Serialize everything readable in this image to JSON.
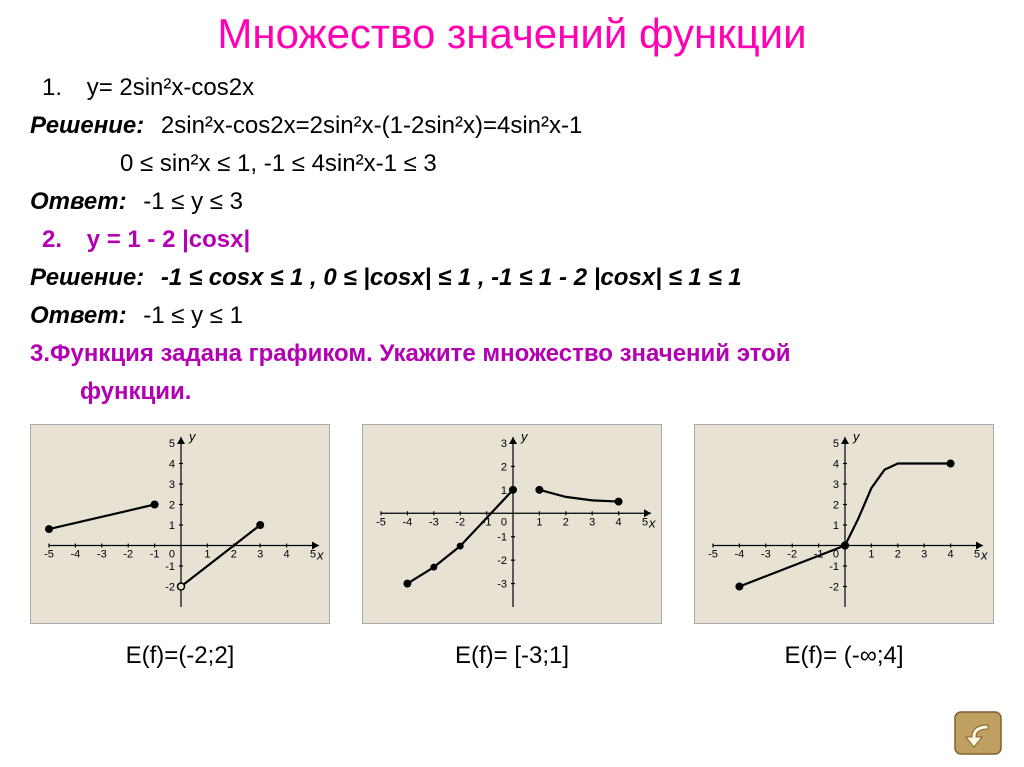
{
  "title": "Множество значений функции",
  "problem1": {
    "num": "1.",
    "func": "y= 2sin²x-cos2x",
    "sol_label": "Решение:",
    "sol_line1": "2sin²x-cos2x=2sin²x-(1-2sin²x)=4sin²x-1",
    "sol_line2": "0 ≤ sin²x  ≤ 1,    -1 ≤ 4sin²x-1 ≤ 3",
    "ans_label": "Ответ:",
    "ans": "-1 ≤ y  ≤ 3"
  },
  "problem2": {
    "num": "2.",
    "func": "y = 1 - 2 |cosx|",
    "sol_label": "Решение:",
    "sol_line1": "-1 ≤ cosx ≤ 1 , 0 ≤ |cosx| ≤ 1 , -1 ≤ 1 - 2 |cosx| ≤ 1 ≤ 1",
    "ans_label": "Ответ:",
    "ans": "-1 ≤ y  ≤ 1"
  },
  "problem3": {
    "heading": "3.Функция задана графиком. Укажите множество значений этой",
    "heading2": "функции."
  },
  "graph1": {
    "background": "#e8e2d5",
    "xlim": [
      -5,
      5
    ],
    "ylim": [
      -3,
      5
    ],
    "xticks": [
      -5,
      -4,
      -3,
      -2,
      -1,
      1,
      2,
      3,
      4,
      5
    ],
    "yticks": [
      -2,
      -1,
      1,
      2,
      3,
      4,
      5
    ],
    "origin_label": "0",
    "x_label": "x",
    "y_label": "y",
    "pieces": [
      {
        "pts": [
          [
            -5,
            0.8
          ],
          [
            -4,
            1.1
          ],
          [
            -3,
            1.4
          ],
          [
            -2,
            1.7
          ],
          [
            -1,
            2
          ]
        ],
        "start": "closed",
        "end": "closed"
      },
      {
        "pts": [
          [
            0,
            -2
          ],
          [
            1,
            -1
          ],
          [
            2,
            0
          ],
          [
            3,
            1
          ]
        ],
        "start": "open",
        "end": "closed"
      }
    ],
    "answer": "E(f)=(-2;2]"
  },
  "graph2": {
    "background": "#e8e2d5",
    "xlim": [
      -5,
      5
    ],
    "ylim": [
      -4,
      3
    ],
    "xticks": [
      -5,
      -4,
      -3,
      -2,
      -1,
      1,
      2,
      3,
      4,
      5
    ],
    "yticks": [
      -3,
      -2,
      -1,
      1,
      2,
      3
    ],
    "origin_label": "0",
    "x_label": "x",
    "y_label": "y",
    "pieces": [
      {
        "pts": [
          [
            -4,
            -3
          ],
          [
            -3,
            -2.3
          ],
          [
            -2,
            -1.4
          ],
          [
            -1,
            -0.2
          ],
          [
            0,
            1
          ]
        ],
        "start": "closed",
        "end": "closed"
      },
      {
        "pts": [
          [
            1,
            1
          ],
          [
            2,
            0.7
          ],
          [
            3,
            0.55
          ],
          [
            4,
            0.5
          ]
        ],
        "start": "closed",
        "end": "closed"
      }
    ],
    "extra_points_closed": [
      [
        -3,
        -2.3
      ],
      [
        -2,
        -1.4
      ]
    ],
    "answer": "E(f)= [-3;1]"
  },
  "graph3": {
    "background": "#e8e2d5",
    "xlim": [
      -5,
      5
    ],
    "ylim": [
      -3,
      5
    ],
    "xticks": [
      -5,
      -4,
      -3,
      -2,
      -1,
      1,
      2,
      3,
      4,
      5
    ],
    "yticks": [
      -2,
      -1,
      1,
      2,
      3,
      4,
      5
    ],
    "origin_label": "0",
    "x_label": "x",
    "y_label": "y",
    "pieces": [
      {
        "pts": [
          [
            -4,
            -2
          ],
          [
            -3,
            -1.5
          ],
          [
            -2,
            -1
          ],
          [
            -1,
            -0.5
          ],
          [
            0,
            0
          ]
        ],
        "start": "closed",
        "end": "closed"
      },
      {
        "pts": [
          [
            0,
            0
          ],
          [
            0.5,
            1.3
          ],
          [
            1,
            2.8
          ],
          [
            1.5,
            3.7
          ],
          [
            2,
            4
          ],
          [
            3,
            4
          ],
          [
            4,
            4
          ]
        ],
        "start": "closed",
        "end": "closed"
      }
    ],
    "answer": "E(f)= (-∞;4]"
  },
  "back_button": {
    "fill": "#c0a060",
    "border": "#806030",
    "arrow": "#fff8e0"
  }
}
